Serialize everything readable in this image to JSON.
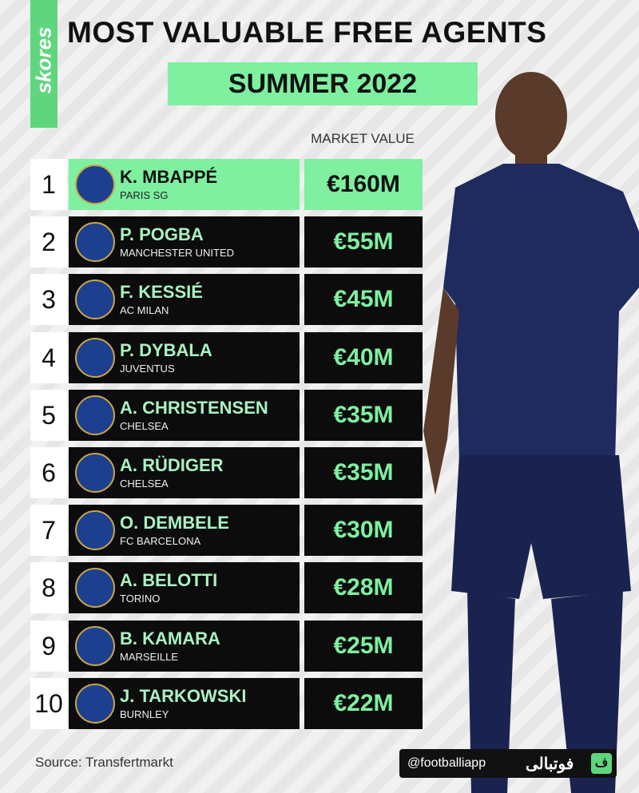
{
  "header": {
    "brand": "skores",
    "title": "MOST VALUABLE FREE AGENTS",
    "subtitle": "SUMMER 2022",
    "column_label": "MARKET VALUE"
  },
  "table": {
    "rows": [
      {
        "rank": "1",
        "name": "K. MBAPPÉ",
        "club": "PARIS SG",
        "value": "€160M"
      },
      {
        "rank": "2",
        "name": "P. POGBA",
        "club": "MANCHESTER UNITED",
        "value": "€55M"
      },
      {
        "rank": "3",
        "name": "F. KESSIÉ",
        "club": "AC MILAN",
        "value": "€45M"
      },
      {
        "rank": "4",
        "name": "P. DYBALA",
        "club": "JUVENTUS",
        "value": "€40M"
      },
      {
        "rank": "5",
        "name": "A. CHRISTENSEN",
        "club": "CHELSEA",
        "value": "€35M"
      },
      {
        "rank": "6",
        "name": "A. RÜDIGER",
        "club": "CHELSEA",
        "value": "€35M"
      },
      {
        "rank": "7",
        "name": "O. DEMBELE",
        "club": "FC BARCELONA",
        "value": "€30M"
      },
      {
        "rank": "8",
        "name": "A. BELOTTI",
        "club": "TORINO",
        "value": "€28M"
      },
      {
        "rank": "9",
        "name": "B. KAMARA",
        "club": "MARSEILLE",
        "value": "€25M"
      },
      {
        "rank": "10",
        "name": "J. TARKOWSKI",
        "club": "BURNLEY",
        "value": "€22M"
      }
    ]
  },
  "footer": {
    "source": "Source: Transfertmarkt",
    "handle": "@footballiapp",
    "app_name": "فوتبالی",
    "app_icon": "ف"
  }
}
